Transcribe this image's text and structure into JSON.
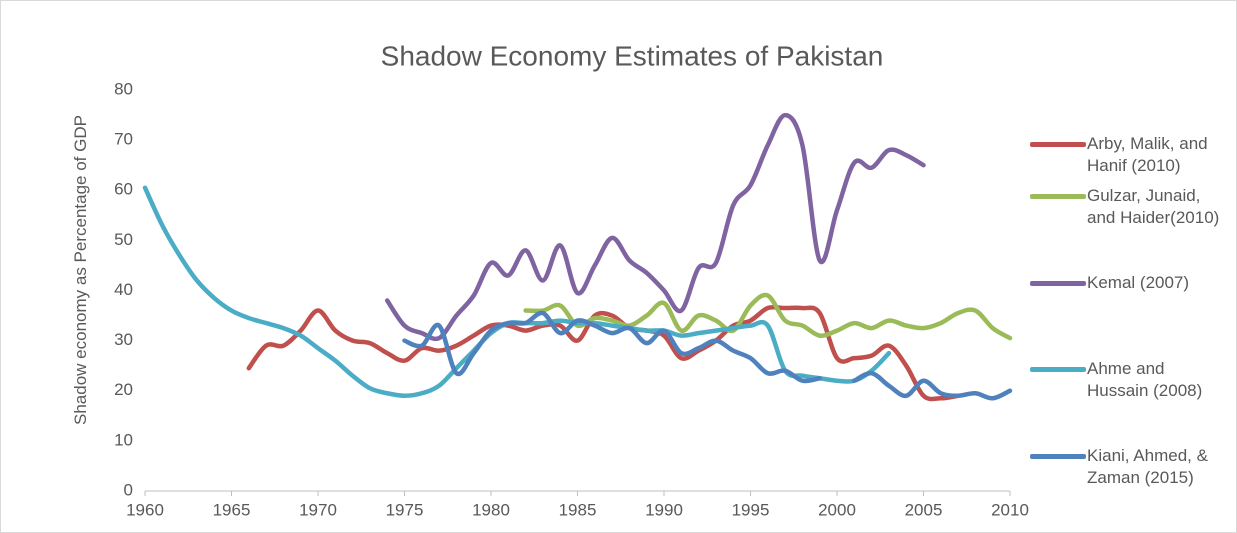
{
  "chart_data": {
    "type": "line",
    "title": "Shadow Economy Estimates of Pakistan",
    "y_label": "Shadow economy as Percentage of GDP",
    "xlim": [
      1960,
      2010
    ],
    "xticks": [
      1960,
      1965,
      1970,
      1975,
      1980,
      1985,
      1990,
      1995,
      2000,
      2005,
      2010
    ],
    "ylim": [
      0,
      80
    ],
    "yticks": [
      0,
      10,
      20,
      30,
      40,
      50,
      60,
      70,
      80
    ],
    "grid": false,
    "legend": "right",
    "series": [
      {
        "name": "Arby, Malik, and Hanif (2010)",
        "color": "#c0504d",
        "x": [
          1966,
          1967,
          1968,
          1969,
          1970,
          1971,
          1972,
          1973,
          1974,
          1975,
          1976,
          1977,
          1978,
          1979,
          1980,
          1981,
          1982,
          1983,
          1984,
          1985,
          1986,
          1987,
          1988,
          1989,
          1990,
          1991,
          1992,
          1993,
          1994,
          1995,
          1996,
          1997,
          1998,
          1999,
          2000,
          2001,
          2002,
          2003,
          2004,
          2005,
          2006,
          2007
        ],
        "values": [
          24.5,
          29,
          29,
          32,
          36,
          32,
          30,
          29.5,
          27.5,
          26,
          28.5,
          28,
          29,
          31,
          33,
          33,
          32,
          33,
          33,
          30,
          35,
          35,
          32.5,
          32,
          31,
          26.5,
          28,
          30,
          33,
          34,
          36.5,
          36.5,
          36.5,
          35.5,
          26.5,
          26.5,
          27,
          29,
          25,
          19,
          18.5,
          19
        ]
      },
      {
        "name": "Gulzar, Junaid, and Haider(2010)",
        "color": "#9bbb59",
        "x": [
          1982,
          1983,
          1984,
          1985,
          1986,
          1987,
          1988,
          1989,
          1990,
          1991,
          1992,
          1993,
          1994,
          1995,
          1996,
          1997,
          1998,
          1999,
          2000,
          2001,
          2002,
          2003,
          2004,
          2005,
          2006,
          2007,
          2008,
          2009,
          2010
        ],
        "values": [
          36,
          36,
          37,
          33,
          34.5,
          34,
          33,
          35,
          37.5,
          32,
          35,
          34,
          32,
          37,
          39,
          34,
          33,
          31,
          32,
          33.5,
          32.5,
          34,
          33,
          32.5,
          33.5,
          35.5,
          36,
          32.5,
          30.5
        ]
      },
      {
        "name": "Kemal (2007)",
        "color": "#8064a2",
        "x": [
          1974,
          1975,
          1976,
          1977,
          1978,
          1979,
          1980,
          1981,
          1982,
          1983,
          1984,
          1985,
          1986,
          1987,
          1988,
          1989,
          1990,
          1991,
          1992,
          1993,
          1994,
          1995,
          1996,
          1997,
          1998,
          1999,
          2000,
          2001,
          2002,
          2003,
          2004,
          2005
        ],
        "values": [
          38,
          33,
          31.5,
          30.5,
          35,
          39,
          45.5,
          43,
          48,
          42,
          49,
          39.5,
          45,
          50.5,
          46,
          43.5,
          40,
          36,
          44.5,
          45.5,
          57,
          61,
          69,
          75,
          69,
          46,
          56,
          65.5,
          64.5,
          68,
          67,
          65
        ]
      },
      {
        "name": "Ahme and Hussain (2008)",
        "color": "#4bacc6",
        "x": [
          1960,
          1961,
          1962,
          1963,
          1964,
          1965,
          1966,
          1967,
          1968,
          1969,
          1970,
          1971,
          1972,
          1973,
          1974,
          1975,
          1976,
          1977,
          1978,
          1979,
          1980,
          1981,
          1982,
          1983,
          1984,
          1985,
          1986,
          1987,
          1988,
          1989,
          1990,
          1991,
          1992,
          1993,
          1994,
          1995,
          1996,
          1997,
          1998,
          1999,
          2000,
          2001,
          2002,
          2003
        ],
        "values": [
          60.5,
          53,
          47,
          42,
          38.5,
          36,
          34.5,
          33.5,
          32.5,
          31,
          28.5,
          26,
          23,
          20.5,
          19.5,
          19,
          19.5,
          21,
          24.5,
          28,
          31.5,
          33.5,
          33.5,
          33.5,
          34,
          33.5,
          33.5,
          33,
          32.5,
          32,
          32,
          31,
          31.5,
          32,
          32.5,
          33,
          33,
          24,
          23,
          22.5,
          22,
          22,
          24,
          27.5
        ]
      },
      {
        "name": "Kiani, Ahmed, & Zaman (2015)",
        "color": "#4f81bd",
        "x": [
          1975,
          1976,
          1977,
          1978,
          1979,
          1980,
          1981,
          1982,
          1983,
          1984,
          1985,
          1986,
          1987,
          1988,
          1989,
          1990,
          1991,
          1992,
          1993,
          1994,
          1995,
          1996,
          1997,
          1998,
          1999,
          2000,
          2001,
          2002,
          2003,
          2004,
          2005,
          2006,
          2007,
          2008,
          2009,
          2010
        ],
        "values": [
          30,
          29,
          33,
          23.5,
          27.5,
          32,
          33.5,
          33.5,
          35.5,
          31.5,
          34,
          33,
          31.5,
          32.5,
          29.5,
          32,
          27.5,
          28.5,
          30,
          28,
          26.5,
          23.5,
          24,
          22,
          22.5,
          null,
          22,
          23.5,
          21,
          19,
          22,
          19.5,
          19,
          19.5,
          18.5,
          20
        ]
      }
    ]
  }
}
